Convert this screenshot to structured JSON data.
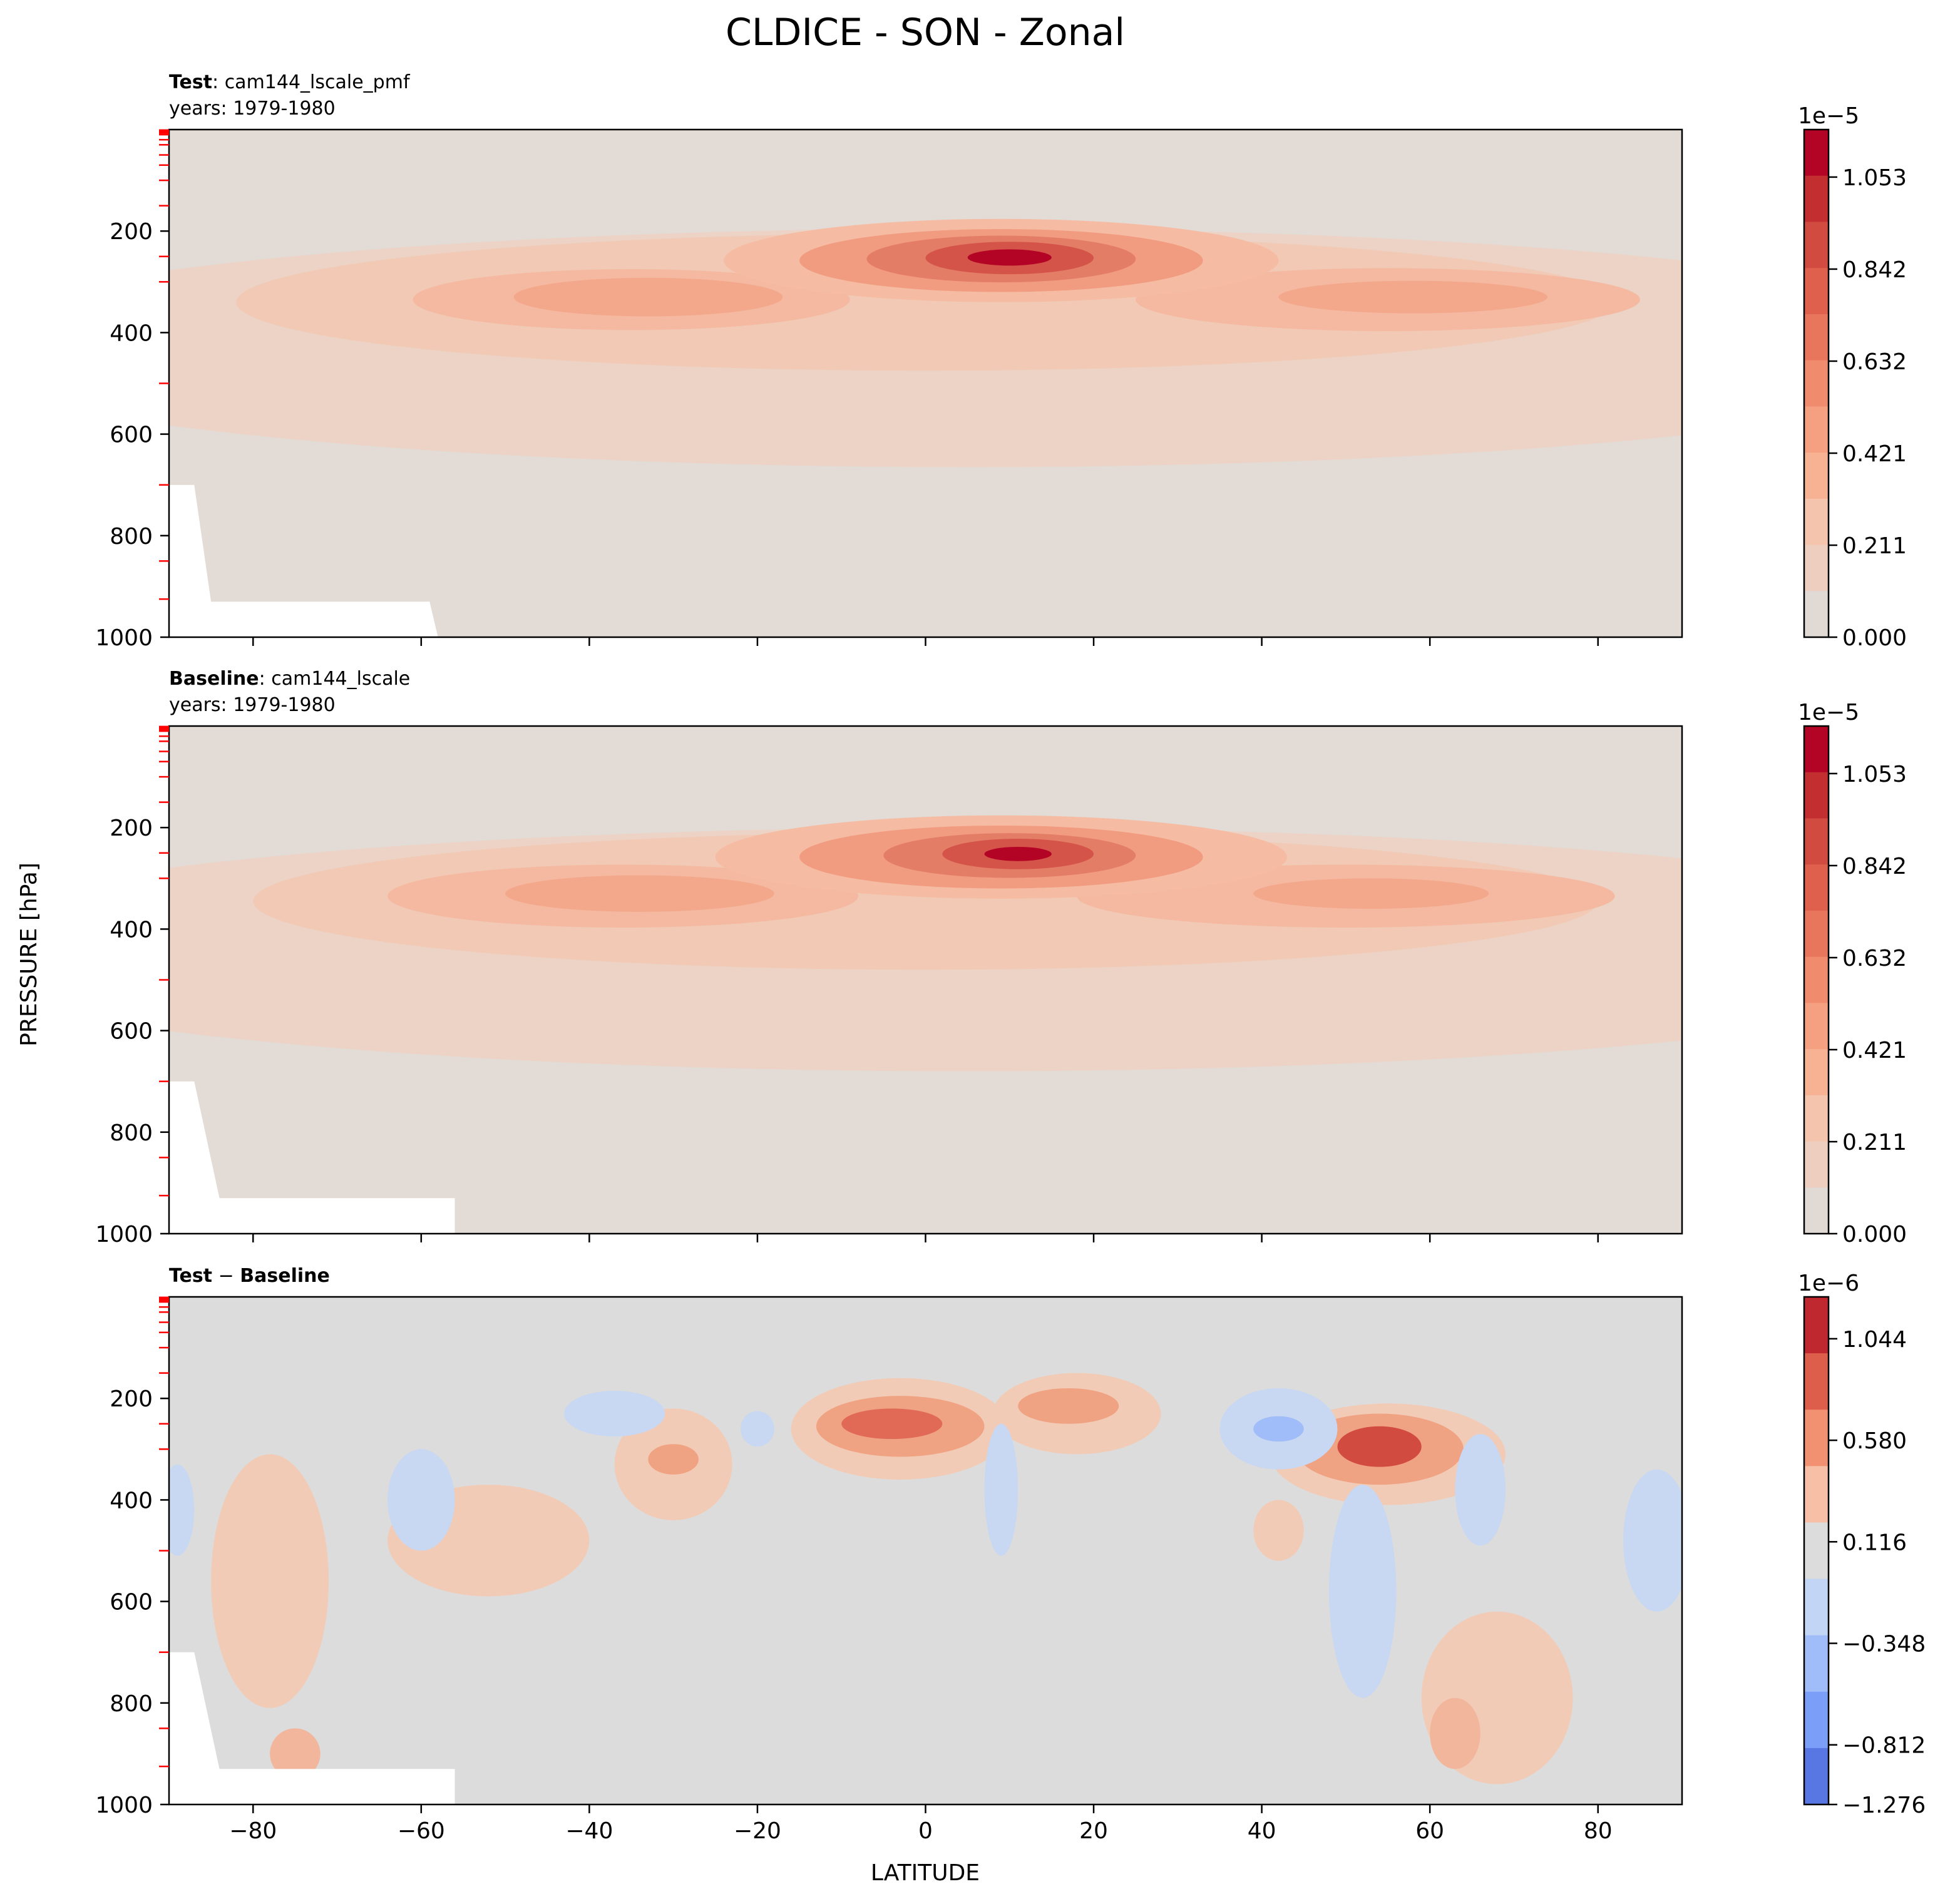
{
  "figure": {
    "title": "CLDICE - SON - Zonal",
    "ylabel": "PRESSURE [hPa]",
    "xlabel": "LATITUDE"
  },
  "panels": [
    {
      "id": "test",
      "label_bold": "Test",
      "label_sep": ": ",
      "label_rest": "cam144_lscale_pmf",
      "years": "years: 1979-1980",
      "colorbar_exponent": "1e−5",
      "colorbar_ticks": [
        "1.053",
        "0.842",
        "0.632",
        "0.421",
        "0.211",
        "0.000"
      ],
      "show_x_ticklabels": false
    },
    {
      "id": "baseline",
      "label_bold": "Baseline",
      "label_sep": ": ",
      "label_rest": "cam144_lscale",
      "years": "years: 1979-1980",
      "colorbar_exponent": "1e−5",
      "colorbar_ticks": [
        "1.053",
        "0.842",
        "0.632",
        "0.421",
        "0.211",
        "0.000"
      ],
      "show_x_ticklabels": false
    },
    {
      "id": "diff",
      "label_bold": "Test",
      "label_sep": " − ",
      "label_rest": "Baseline",
      "label_rest_bold": true,
      "years": "",
      "colorbar_exponent": "1e−6",
      "colorbar_ticks": [
        "1.044",
        "0.580",
        "0.116",
        "−0.348",
        "−0.812",
        "−1.276"
      ],
      "show_x_ticklabels": true
    }
  ],
  "chart_data": [
    {
      "type": "heatmap",
      "title": "Test: cam144_lscale_pmf",
      "xlabel": "LATITUDE",
      "ylabel": "PRESSURE [hPa]",
      "xlim": [
        -90,
        90
      ],
      "ylim": [
        1000,
        0
      ],
      "x_ticks": [
        -80,
        -60,
        -40,
        -20,
        0,
        20,
        40,
        60,
        80
      ],
      "y_ticks": [
        200,
        400,
        600,
        800,
        1000
      ],
      "colorbar_levels": [
        0.0,
        0.211,
        0.421,
        0.632,
        0.842,
        1.053
      ],
      "colorbar_scale": "1e-5",
      "colormap": "coolwarm",
      "features": [
        {
          "lat": 10,
          "pressure": 250,
          "value": 1.1
        },
        {
          "lat": -35,
          "pressure": 330,
          "value": 0.45
        },
        {
          "lat": 55,
          "pressure": 330,
          "value": 0.45
        }
      ]
    },
    {
      "type": "heatmap",
      "title": "Baseline: cam144_lscale",
      "xlabel": "LATITUDE",
      "ylabel": "PRESSURE [hPa]",
      "xlim": [
        -90,
        90
      ],
      "ylim": [
        1000,
        0
      ],
      "x_ticks": [
        -80,
        -60,
        -40,
        -20,
        0,
        20,
        40,
        60,
        80
      ],
      "y_ticks": [
        200,
        400,
        600,
        800,
        1000
      ],
      "colorbar_levels": [
        0.0,
        0.211,
        0.421,
        0.632,
        0.842,
        1.053
      ],
      "colorbar_scale": "1e-5",
      "colormap": "coolwarm",
      "features": [
        {
          "lat": 10,
          "pressure": 250,
          "value": 1.1
        },
        {
          "lat": -36,
          "pressure": 330,
          "value": 0.45
        },
        {
          "lat": 50,
          "pressure": 330,
          "value": 0.45
        }
      ]
    },
    {
      "type": "heatmap",
      "title": "Test - Baseline",
      "xlabel": "LATITUDE",
      "ylabel": "PRESSURE [hPa]",
      "xlim": [
        -90,
        90
      ],
      "ylim": [
        1000,
        0
      ],
      "x_ticks": [
        -80,
        -60,
        -40,
        -20,
        0,
        20,
        40,
        60,
        80
      ],
      "y_ticks": [
        200,
        400,
        600,
        800,
        1000
      ],
      "colorbar_levels": [
        -1.276,
        -0.812,
        -0.348,
        0.116,
        0.58,
        1.044
      ],
      "colorbar_scale": "1e-6",
      "colormap": "coolwarm",
      "features": [
        {
          "lat": 53,
          "pressure": 300,
          "value": 1.1
        },
        {
          "lat": -3,
          "pressure": 250,
          "value": 0.9
        },
        {
          "lat": 18,
          "pressure": 230,
          "value": 0.6
        },
        {
          "lat": 42,
          "pressure": 270,
          "value": -0.6
        }
      ]
    }
  ]
}
